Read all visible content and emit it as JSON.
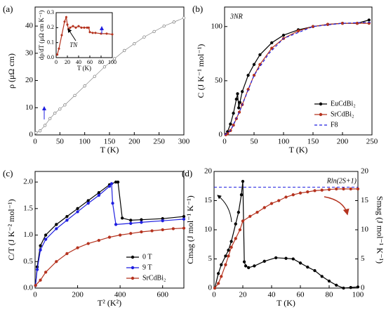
{
  "chart_data": [
    {
      "type": "line",
      "panel_label": "(a)",
      "xlabel": "T (K)",
      "ylabel": "ρ (μΩ cm)",
      "xlim": [
        0,
        300
      ],
      "xticks": [
        0,
        50,
        100,
        150,
        200,
        250,
        300
      ],
      "ylim": [
        0,
        47
      ],
      "yticks": [
        0,
        10,
        20,
        30,
        40
      ],
      "series": [
        {
          "color": "#777777",
          "marker": "open-circle",
          "x": [
            2,
            10,
            20,
            30,
            40,
            50,
            60,
            80,
            100,
            120,
            140,
            160,
            180,
            200,
            220,
            240,
            260,
            280,
            300
          ],
          "values": [
            0.8,
            1.5,
            3.5,
            6,
            8,
            9.5,
            11,
            14.5,
            18,
            21.5,
            25,
            28,
            31,
            33.5,
            36,
            38,
            40,
            41.5,
            43
          ]
        }
      ]
    },
    {
      "type": "line",
      "xlabel": "T (K)",
      "ylabel": "dρ/dT (μΩ cm K⁻¹)",
      "annotation": "TN",
      "xlim": [
        0,
        100
      ],
      "xticks": [
        0,
        20,
        40,
        60,
        80,
        100
      ],
      "ylim": [
        0,
        0.3
      ],
      "yticks": [
        {
          "value": 0,
          "label": "0.0"
        },
        0.1,
        0.2,
        0.3
      ],
      "series": [
        {
          "color": "#b5331f",
          "marker": "circle",
          "x": [
            2,
            5,
            10,
            15,
            18,
            20,
            22,
            25,
            30,
            35,
            40,
            45,
            50,
            55,
            58,
            60,
            65,
            70,
            80,
            90,
            100
          ],
          "values": [
            0.02,
            0.06,
            0.15,
            0.24,
            0.27,
            0.22,
            0.19,
            0.2,
            0.21,
            0.2,
            0.21,
            0.2,
            0.2,
            0.2,
            0.2,
            0.17,
            0.165,
            0.165,
            0.16,
            0.16,
            0.155
          ]
        }
      ]
    },
    {
      "type": "line",
      "panel_label": "(b)",
      "xlabel": "T (K)",
      "ylabel": "C (J K⁻¹ mol⁻¹)",
      "annotation": "3NR",
      "xlim": [
        0,
        250
      ],
      "xticks": [
        0,
        50,
        100,
        150,
        200,
        250
      ],
      "ylim": [
        0,
        118
      ],
      "yticks": [
        0,
        50,
        100
      ],
      "legend": "bottom-right",
      "series": [
        {
          "name": "EuCdBi₂",
          "color": "#000000",
          "marker": "circle",
          "x": [
            2,
            5,
            10,
            15,
            20,
            22,
            24,
            26,
            30,
            40,
            50,
            60,
            80,
            100,
            125,
            150,
            175,
            200,
            225,
            245
          ],
          "values": [
            0.5,
            3,
            10,
            20,
            33,
            38,
            25,
            30,
            40,
            55,
            65,
            74,
            85,
            92,
            97,
            100,
            102,
            103,
            103,
            106
          ]
        },
        {
          "name": "SrCdBi₂",
          "color": "#b5331f",
          "marker": "circle",
          "x": [
            2,
            5,
            10,
            15,
            20,
            25,
            30,
            40,
            50,
            60,
            80,
            100,
            125,
            150,
            175,
            200,
            225,
            245
          ],
          "values": [
            0.2,
            1,
            4,
            9,
            15,
            21,
            28,
            42,
            55,
            65,
            80,
            89,
            96,
            100,
            102,
            103,
            103,
            103
          ]
        },
        {
          "name": "F8",
          "color": "#1f1fe0",
          "marker": "none",
          "dash": true,
          "x": [
            0,
            10,
            25,
            50,
            75,
            100,
            150,
            200,
            250
          ],
          "values": [
            0,
            4,
            21,
            55,
            75,
            89,
            100,
            103,
            104
          ]
        }
      ]
    },
    {
      "type": "line",
      "panel_label": "(c)",
      "xlabel": "T² (K²)",
      "ylabel": "C/T (J K⁻² mol⁻¹)",
      "xlim": [
        0,
        700
      ],
      "xticks": [
        0,
        200,
        400,
        600
      ],
      "ylim": [
        0,
        2.2
      ],
      "yticks": [
        {
          "value": 0,
          "label": "0.0"
        },
        0.5,
        {
          "value": 1,
          "label": "1.0"
        },
        1.5,
        {
          "value": 2,
          "label": "2.0"
        }
      ],
      "legend": "bottom-right",
      "series": [
        {
          "name": "0 T",
          "color": "#000000",
          "marker": "circle",
          "x": [
            2,
            10,
            25,
            50,
            100,
            150,
            200,
            250,
            300,
            350,
            380,
            390,
            410,
            450,
            500,
            600,
            700
          ],
          "values": [
            0.05,
            0.4,
            0.8,
            1.0,
            1.2,
            1.35,
            1.5,
            1.65,
            1.8,
            1.95,
            2.0,
            2.0,
            1.32,
            1.28,
            1.29,
            1.31,
            1.35
          ]
        },
        {
          "name": "9 T",
          "color": "#1f1fe0",
          "marker": "circle",
          "x": [
            2,
            10,
            25,
            50,
            100,
            150,
            200,
            250,
            300,
            350,
            360,
            365,
            380,
            450,
            500,
            600,
            700
          ],
          "values": [
            0.05,
            0.35,
            0.72,
            0.92,
            1.12,
            1.28,
            1.44,
            1.6,
            1.75,
            1.92,
            1.97,
            1.6,
            1.2,
            1.22,
            1.24,
            1.27,
            1.3
          ]
        },
        {
          "name": "SrCdBi₂",
          "color": "#b5331f",
          "marker": "circle",
          "x": [
            2,
            25,
            50,
            100,
            150,
            200,
            250,
            300,
            350,
            400,
            450,
            500,
            550,
            600,
            650,
            700
          ],
          "values": [
            0.05,
            0.15,
            0.3,
            0.5,
            0.65,
            0.76,
            0.84,
            0.9,
            0.96,
            1.0,
            1.03,
            1.06,
            1.08,
            1.1,
            1.12,
            1.13
          ]
        }
      ]
    },
    {
      "type": "line",
      "panel_label": "(d)",
      "xlabel": "T (K)",
      "ylabel": "Cmag (J mol⁻¹ K⁻¹)",
      "y2label": "Smag (J mol⁻¹ K⁻¹)",
      "xlim": [
        0,
        100
      ],
      "xticks": [
        0,
        20,
        40,
        60,
        80,
        100
      ],
      "ylim": [
        0,
        20
      ],
      "yticks": [
        0,
        5,
        10,
        15,
        20
      ],
      "y2lim": [
        0,
        20
      ],
      "y2ticks": [
        0,
        5,
        10,
        15,
        20
      ],
      "reference_lines": [
        {
          "value": 17.3,
          "label": "Rln(2S+1)",
          "color": "#1f1fe0"
        }
      ],
      "series": [
        {
          "color": "#000000",
          "marker": "circle",
          "x": [
            0.5,
            3,
            5,
            8,
            10,
            12,
            15,
            17,
            19,
            20,
            21,
            22,
            24,
            28,
            35,
            43,
            50,
            55,
            60,
            65,
            70,
            75,
            80,
            85,
            90,
            95,
            100
          ],
          "values": [
            0,
            2.5,
            4,
            5.5,
            6.5,
            8,
            11,
            13,
            16,
            18.3,
            4.5,
            3.8,
            3.5,
            3.8,
            4.6,
            5.2,
            5.1,
            5,
            4.3,
            3.6,
            3,
            2,
            1.2,
            0.5,
            0,
            0.1,
            0.2
          ]
        },
        {
          "color": "#b5331f",
          "marker": "circle",
          "axis": "y2",
          "x": [
            0.5,
            3,
            5,
            8,
            10,
            12,
            15,
            18,
            20,
            25,
            30,
            35,
            40,
            45,
            50,
            55,
            60,
            65,
            70,
            75,
            80,
            85,
            90,
            95,
            100
          ],
          "values": [
            0,
            0.8,
            2,
            4,
            5.5,
            7,
            8.5,
            10,
            11.5,
            12.3,
            13,
            13.8,
            14.5,
            15,
            15.6,
            16,
            16.3,
            16.5,
            16.7,
            16.8,
            16.9,
            17,
            17,
            17,
            17
          ]
        }
      ]
    }
  ]
}
